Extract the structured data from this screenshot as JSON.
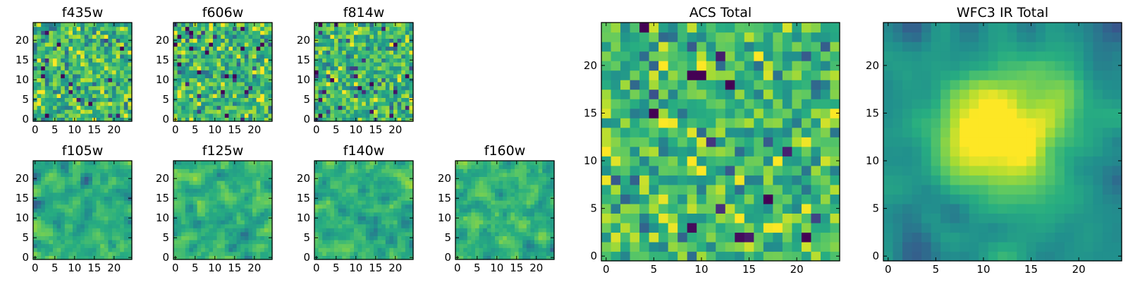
{
  "chart_data": [
    {
      "type": "heatmap",
      "title": "f435w",
      "grid_size": 25,
      "colormap": "viridis",
      "seed": 11,
      "smooth": 0,
      "vmin": -1.2,
      "vmax": 0.9,
      "xticks": [
        0,
        5,
        10,
        15,
        20
      ],
      "xtick_labels": [
        "0",
        "5",
        "10",
        "15",
        "20"
      ],
      "yticks": [
        0,
        5,
        10,
        15,
        20
      ],
      "ytick_labels": [
        "0",
        "5",
        "10",
        "15",
        "20"
      ]
    },
    {
      "type": "heatmap",
      "title": "f606w",
      "grid_size": 25,
      "colormap": "viridis",
      "seed": 23,
      "smooth": 0,
      "vmin": -1.2,
      "vmax": 0.9,
      "xticks": [
        0,
        5,
        10,
        15,
        20
      ],
      "xtick_labels": [
        "0",
        "5",
        "10",
        "15",
        "20"
      ],
      "yticks": [
        0,
        5,
        10,
        15,
        20
      ],
      "ytick_labels": [
        "0",
        "5",
        "10",
        "15",
        "20"
      ]
    },
    {
      "type": "heatmap",
      "title": "f814w",
      "grid_size": 25,
      "colormap": "viridis",
      "seed": 37,
      "smooth": 0,
      "vmin": -1.2,
      "vmax": 0.9,
      "xticks": [
        0,
        5,
        10,
        15,
        20
      ],
      "xtick_labels": [
        "0",
        "5",
        "10",
        "15",
        "20"
      ],
      "yticks": [
        0,
        5,
        10,
        15,
        20
      ],
      "ytick_labels": [
        "0",
        "5",
        "10",
        "15",
        "20"
      ]
    },
    {
      "type": "heatmap",
      "title": "f105w",
      "grid_size": 25,
      "colormap": "viridis",
      "seed": 41,
      "smooth": 1,
      "vmin": -1.0,
      "vmax": 0.8,
      "xticks": [
        0,
        5,
        10,
        15,
        20
      ],
      "xtick_labels": [
        "0",
        "5",
        "10",
        "15",
        "20"
      ],
      "yticks": [
        0,
        5,
        10,
        15,
        20
      ],
      "ytick_labels": [
        "0",
        "5",
        "10",
        "15",
        "20"
      ]
    },
    {
      "type": "heatmap",
      "title": "f125w",
      "grid_size": 25,
      "colormap": "viridis",
      "seed": 53,
      "smooth": 1,
      "vmin": -1.0,
      "vmax": 0.8,
      "xticks": [
        0,
        5,
        10,
        15,
        20
      ],
      "xtick_labels": [
        "0",
        "5",
        "10",
        "15",
        "20"
      ],
      "yticks": [
        0,
        5,
        10,
        15,
        20
      ],
      "ytick_labels": [
        "0",
        "5",
        "10",
        "15",
        "20"
      ]
    },
    {
      "type": "heatmap",
      "title": "f140w",
      "grid_size": 25,
      "colormap": "viridis",
      "seed": 67,
      "smooth": 1,
      "vmin": -1.0,
      "vmax": 0.8,
      "xticks": [
        0,
        5,
        10,
        15,
        20
      ],
      "xtick_labels": [
        "0",
        "5",
        "10",
        "15",
        "20"
      ],
      "yticks": [
        0,
        5,
        10,
        15,
        20
      ],
      "ytick_labels": [
        "0",
        "5",
        "10",
        "15",
        "20"
      ]
    },
    {
      "type": "heatmap",
      "title": "f160w",
      "grid_size": 25,
      "colormap": "viridis",
      "seed": 79,
      "smooth": 1,
      "vmin": -1.0,
      "vmax": 0.8,
      "xticks": [
        0,
        5,
        10,
        15,
        20
      ],
      "xtick_labels": [
        "0",
        "5",
        "10",
        "15",
        "20"
      ],
      "yticks": [
        0,
        5,
        10,
        15,
        20
      ],
      "ytick_labels": [
        "0",
        "5",
        "10",
        "15",
        "20"
      ]
    },
    {
      "type": "heatmap",
      "title": "ACS Total",
      "grid_size": 25,
      "colormap": "viridis",
      "seed": 97,
      "smooth": 0,
      "vmin": -1.2,
      "vmax": 0.85,
      "xticks": [
        0,
        5,
        10,
        15,
        20
      ],
      "xtick_labels": [
        "0",
        "5",
        "10",
        "15",
        "20"
      ],
      "yticks": [
        0,
        5,
        10,
        15,
        20
      ],
      "ytick_labels": [
        "0",
        "5",
        "10",
        "15",
        "20"
      ]
    },
    {
      "type": "heatmap",
      "title": "WFC3 IR Total",
      "grid_size": 25,
      "colormap": "viridis",
      "seed": 131,
      "smooth": 2,
      "vmin": -0.9,
      "vmax": 0.95,
      "peak": [
        12,
        13,
        1.3,
        4.5
      ],
      "xticks": [
        0,
        5,
        10,
        15,
        20
      ],
      "xtick_labels": [
        "0",
        "5",
        "10",
        "15",
        "20"
      ],
      "yticks": [
        0,
        5,
        10,
        15,
        20
      ],
      "ytick_labels": [
        "0",
        "5",
        "10",
        "15",
        "20"
      ]
    }
  ]
}
